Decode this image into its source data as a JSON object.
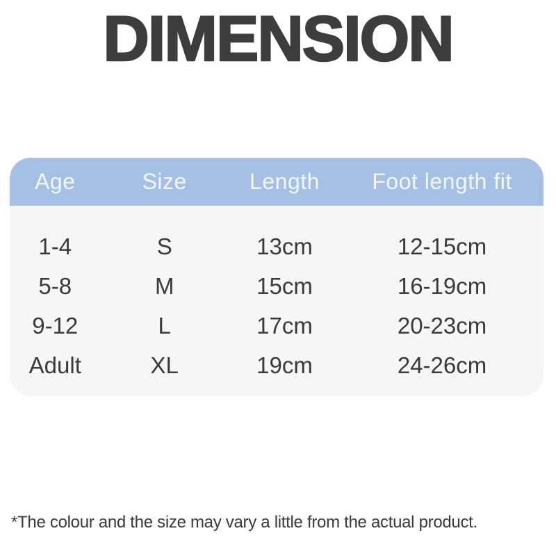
{
  "page": {
    "title": "DIMENSION",
    "footnote": "*The colour and the size may vary a little from the actual product."
  },
  "chart_data": {
    "type": "table",
    "title": "DIMENSION",
    "columns": [
      "Age",
      "Size",
      "Length",
      "Foot length fit"
    ],
    "rows": [
      [
        "1-4",
        "S",
        "13cm",
        "12-15cm"
      ],
      [
        "5-8",
        "M",
        "15cm",
        "16-19cm"
      ],
      [
        "9-12",
        "L",
        "17cm",
        "20-23cm"
      ],
      [
        "Adult",
        "XL",
        "19cm",
        "24-26cm"
      ]
    ],
    "note": "*The colour and the size may vary a little from the actual product.",
    "layout_hints": {
      "header_position": "top",
      "grid": "off",
      "units": "cm"
    }
  },
  "colors": {
    "page_bg": "#ffffff",
    "card_bg": "#f6f6f4",
    "header_bg": "#a4c0e5",
    "header_text": "#f3f7fc",
    "body_text": "#3a3a3a",
    "title_text": "#3d3d3d"
  }
}
